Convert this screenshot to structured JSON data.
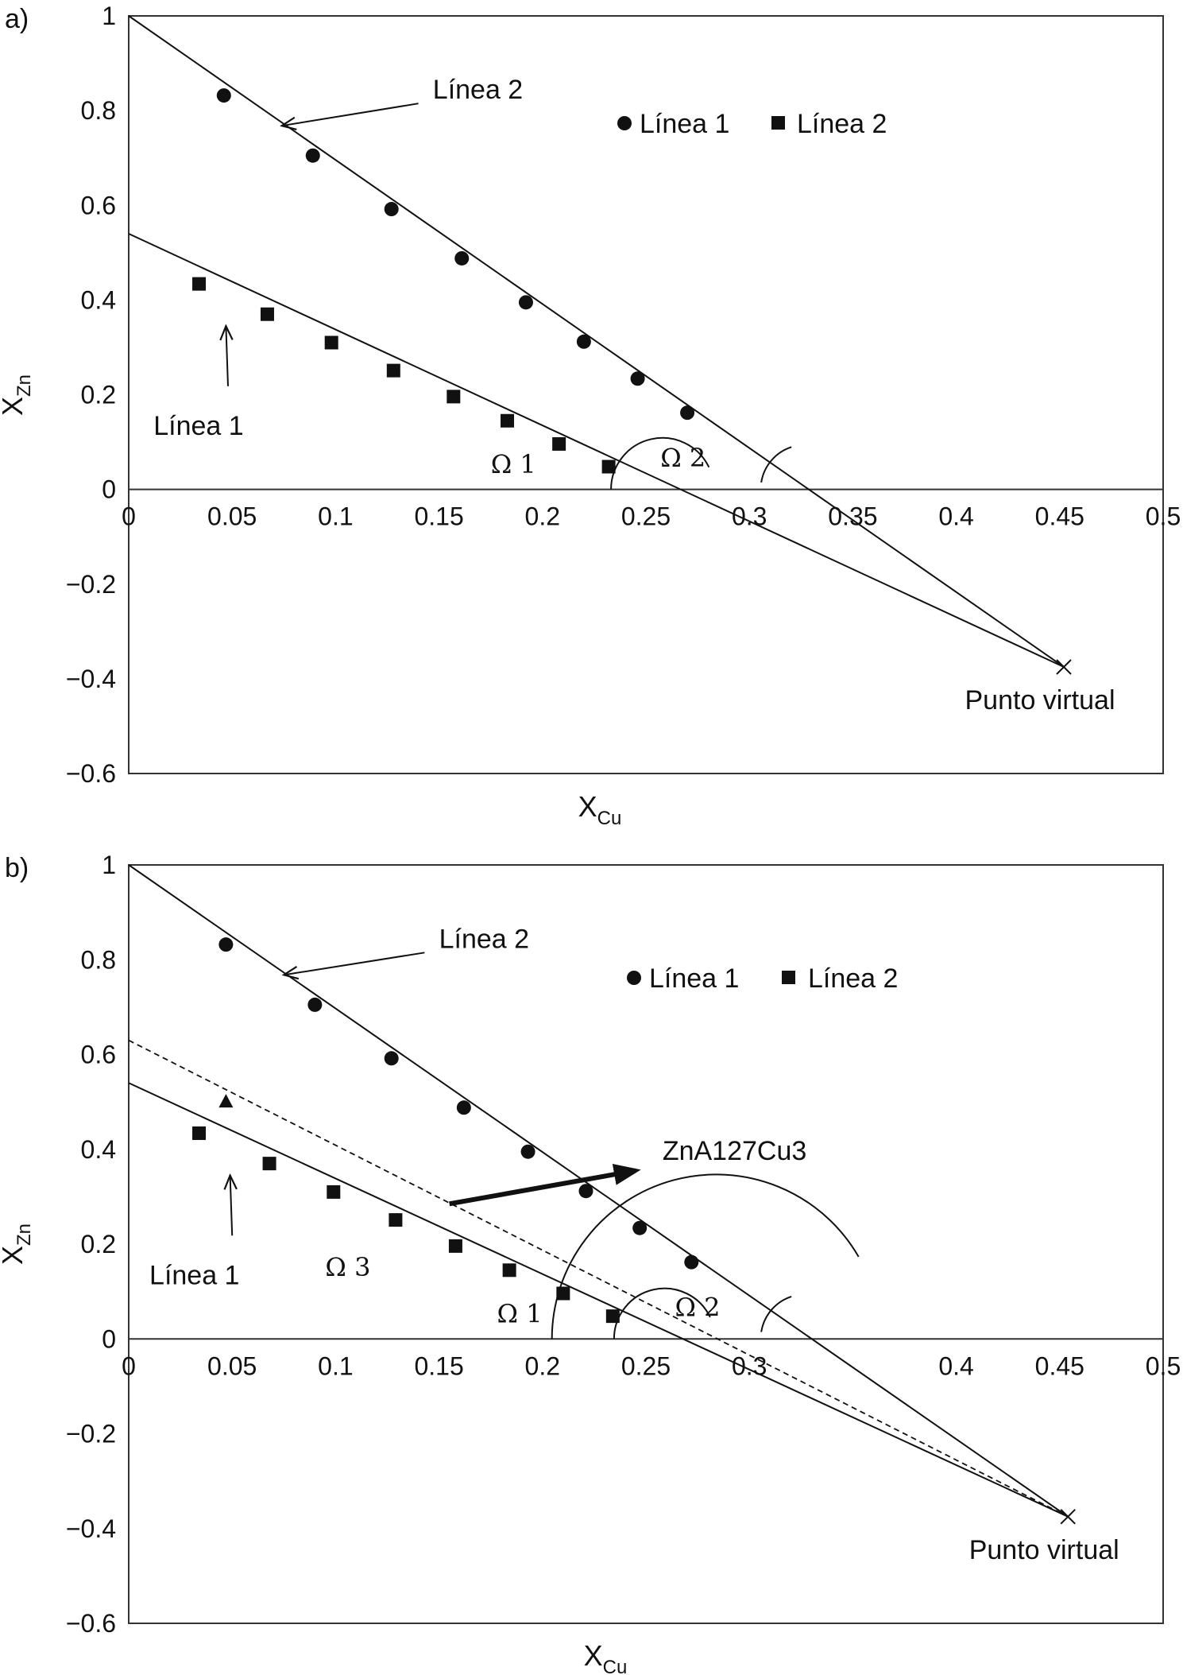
{
  "colors": {
    "ink": "#111111",
    "frame": "#333333",
    "background": "#ffffff"
  },
  "chart_data": [
    {
      "type": "scatter",
      "panel_label": "a)",
      "xlabel": "X",
      "xlabel_sub": "Cu",
      "ylabel": "X",
      "ylabel_sub": "Zn",
      "xlim": [
        0,
        0.5
      ],
      "ylim": [
        -0.6,
        1
      ],
      "x_ticks": [
        0,
        0.05,
        0.1,
        0.15,
        0.2,
        0.25,
        0.3,
        0.35,
        0.4,
        0.45,
        0.5
      ],
      "x_tick_labels": [
        "0",
        "0.05",
        "0.1",
        "0.15",
        "0.2",
        "0.25",
        "0.3",
        "0.35",
        "0.4",
        "0.45",
        "0.5"
      ],
      "y_ticks": [
        -0.6,
        -0.4,
        -0.2,
        0,
        0.2,
        0.4,
        0.6,
        0.8,
        1
      ],
      "y_tick_labels": [
        "−0.6",
        "−0.4",
        "−0.2",
        "0",
        "0.2",
        "0.4",
        "0.6",
        "0.8",
        "1"
      ],
      "grid": false,
      "legend": {
        "position": "top-right",
        "entries": [
          {
            "label": "Línea 1",
            "marker": "circle"
          },
          {
            "label": "Línea 2",
            "marker": "square"
          }
        ]
      },
      "series": [
        {
          "name": "Línea 1",
          "marker": "circle",
          "points": [
            [
              0.046,
              0.832
            ],
            [
              0.089,
              0.705
            ],
            [
              0.127,
              0.592
            ],
            [
              0.161,
              0.488
            ],
            [
              0.192,
              0.395
            ],
            [
              0.22,
              0.312
            ],
            [
              0.246,
              0.234
            ],
            [
              0.27,
              0.162
            ]
          ]
        },
        {
          "name": "Línea 2",
          "marker": "square",
          "points": [
            [
              0.034,
              0.434
            ],
            [
              0.067,
              0.37
            ],
            [
              0.098,
              0.31
            ],
            [
              0.128,
              0.251
            ],
            [
              0.157,
              0.196
            ],
            [
              0.183,
              0.145
            ],
            [
              0.208,
              0.096
            ],
            [
              0.232,
              0.048
            ]
          ]
        }
      ],
      "lines": [
        {
          "from": [
            0,
            1
          ],
          "to": [
            0.452,
            -0.375
          ],
          "style": "solid"
        },
        {
          "from": [
            0,
            0.54
          ],
          "to": [
            0.452,
            -0.375
          ],
          "style": "solid"
        }
      ],
      "virtual_point": {
        "x": 0.452,
        "y": -0.375,
        "label": "Punto virtual"
      },
      "annotations": [
        {
          "text": "Línea 2",
          "kind": "label",
          "text_at": [
            0.147,
            0.825
          ],
          "arrow_from": [
            0.14,
            0.815
          ],
          "arrow_to": [
            0.074,
            0.768
          ]
        },
        {
          "text": "Línea 1",
          "kind": "label",
          "text_at": [
            0.012,
            0.115
          ],
          "arrow_from": [
            0.048,
            0.218
          ],
          "arrow_to": [
            0.047,
            0.345
          ]
        }
      ],
      "angles": [
        {
          "text": "Ω 1",
          "text_at": [
            0.175,
            0.035
          ],
          "center": [
            0.258,
            0
          ],
          "radius": 0.052,
          "start_deg": 25.5,
          "end_deg": 180
        },
        {
          "text": "Ω 2",
          "text_at": [
            0.257,
            0.048
          ],
          "center": [
            0.327,
            0
          ],
          "radius": 0.045,
          "start_deg": 108,
          "end_deg": 171
        }
      ]
    },
    {
      "type": "scatter",
      "panel_label": "b)",
      "xlabel": "X",
      "xlabel_sub": "Cu",
      "ylabel": "X",
      "ylabel_sub": "Zn",
      "xlim": [
        0,
        0.5
      ],
      "ylim": [
        -0.6,
        1
      ],
      "x_ticks": [
        0,
        0.05,
        0.1,
        0.15,
        0.2,
        0.25,
        0.3,
        0.4,
        0.45,
        0.5
      ],
      "x_tick_labels": [
        "0",
        "0.05",
        "0.1",
        "0.15",
        "0.2",
        "0.25",
        "0.3",
        "0.4",
        "0.45",
        "0.5"
      ],
      "y_ticks": [
        -0.6,
        -0.4,
        -0.2,
        0,
        0.2,
        0.4,
        0.6,
        0.8,
        1
      ],
      "y_tick_labels": [
        "−0.6",
        "−0.4",
        "−0.2",
        "0",
        "0.2",
        "0.4",
        "0.6",
        "0.8",
        "1"
      ],
      "grid": false,
      "legend": {
        "position": "top-right",
        "entries": [
          {
            "label": "Línea 1",
            "marker": "circle"
          },
          {
            "label": "Línea 2",
            "marker": "square"
          }
        ]
      },
      "series": [
        {
          "name": "Línea 1",
          "marker": "circle",
          "points": [
            [
              0.047,
              0.832
            ],
            [
              0.09,
              0.705
            ],
            [
              0.127,
              0.592
            ],
            [
              0.162,
              0.488
            ],
            [
              0.193,
              0.395
            ],
            [
              0.221,
              0.312
            ],
            [
              0.247,
              0.234
            ],
            [
              0.272,
              0.162
            ]
          ]
        },
        {
          "name": "Línea 2",
          "marker": "square",
          "points": [
            [
              0.034,
              0.434
            ],
            [
              0.068,
              0.37
            ],
            [
              0.099,
              0.31
            ],
            [
              0.129,
              0.251
            ],
            [
              0.158,
              0.196
            ],
            [
              0.184,
              0.145
            ],
            [
              0.21,
              0.096
            ],
            [
              0.234,
              0.048
            ]
          ]
        },
        {
          "name": "ZnA127Cu3",
          "marker": "triangle",
          "points": [
            [
              0.047,
              0.5
            ]
          ]
        }
      ],
      "lines": [
        {
          "from": [
            0,
            1
          ],
          "to": [
            0.454,
            -0.375
          ],
          "style": "solid"
        },
        {
          "from": [
            0,
            0.54
          ],
          "to": [
            0.454,
            -0.375
          ],
          "style": "solid"
        },
        {
          "from": [
            0,
            0.63
          ],
          "to": [
            0.454,
            -0.375
          ],
          "style": "dashed"
        }
      ],
      "virtual_point": {
        "x": 0.454,
        "y": -0.375,
        "label": "Punto virtual"
      },
      "annotations": [
        {
          "text": "Línea 2",
          "kind": "label",
          "text_at": [
            0.15,
            0.825
          ],
          "arrow_from": [
            0.143,
            0.815
          ],
          "arrow_to": [
            0.075,
            0.768
          ]
        },
        {
          "text": "Línea 1",
          "kind": "label",
          "text_at": [
            0.01,
            0.115
          ],
          "arrow_from": [
            0.05,
            0.218
          ],
          "arrow_to": [
            0.049,
            0.345
          ]
        },
        {
          "text": "ZnA127Cu3",
          "kind": "bold-arrow",
          "text_at": [
            0.258,
            0.378
          ],
          "arrow_from": [
            0.155,
            0.285
          ],
          "arrow_to": [
            0.245,
            0.355
          ]
        }
      ],
      "angles": [
        {
          "text": "Ω 1",
          "text_at": [
            0.178,
            0.035
          ],
          "center": [
            0.259,
            0
          ],
          "radius": 0.051,
          "start_deg": 25.5,
          "end_deg": 180
        },
        {
          "text": "Ω 2",
          "text_at": [
            0.264,
            0.048
          ],
          "center": [
            0.327,
            0
          ],
          "radius": 0.045,
          "start_deg": 108,
          "end_deg": 171
        },
        {
          "text": "Ω 3",
          "text_at": [
            0.095,
            0.133
          ],
          "center": [
            0.284,
            0
          ],
          "radius": 0.166,
          "start_deg": 30,
          "end_deg": 180
        }
      ]
    }
  ]
}
